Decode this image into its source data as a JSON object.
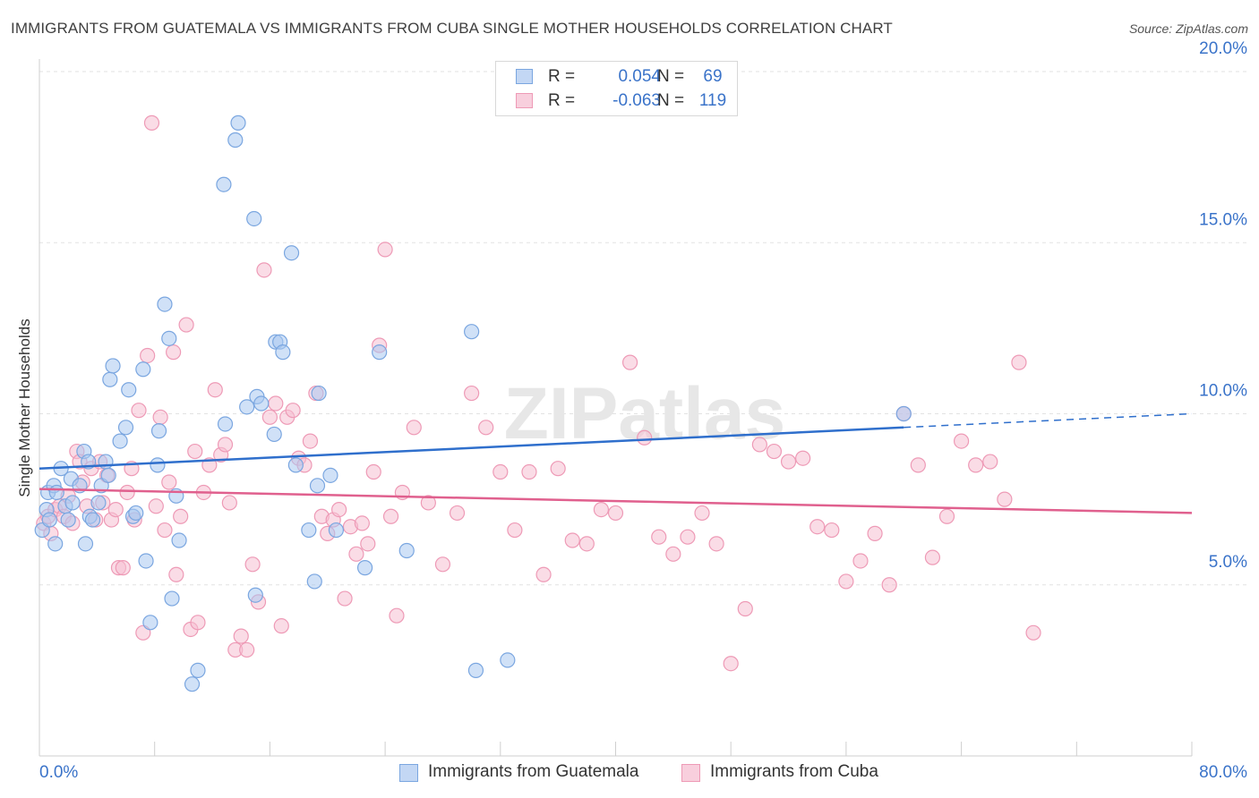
{
  "chart_data": {
    "type": "scatter",
    "title": "IMMIGRANTS FROM GUATEMALA VS IMMIGRANTS FROM CUBA SINGLE MOTHER HOUSEHOLDS CORRELATION CHART",
    "source": "Source: ZipAtlas.com",
    "ylabel": "Single Mother Households",
    "xlabel": "",
    "x_tick_labels": [
      "0.0%",
      "80.0%"
    ],
    "y_tick_labels": [
      "20.0%",
      "15.0%",
      "10.0%",
      "5.0%"
    ],
    "y_ticks": [
      20,
      15,
      10,
      5
    ],
    "xlim": [
      0,
      80
    ],
    "ylim": [
      0,
      20
    ],
    "grid": true,
    "watermark": "ZIPatlas",
    "legend": {
      "r_label": "R =",
      "n_label": "N =",
      "entries": [
        {
          "r": "0.054",
          "n": "69"
        },
        {
          "r": "-0.063",
          "n": "119"
        }
      ]
    },
    "series": [
      {
        "name": "Immigrants from Guatemala",
        "color": "#7aa6e0",
        "fill": "#aac8f0",
        "line_color": "#2f6fcc",
        "trend": {
          "x0": 0,
          "y0": 8.4,
          "x1": 60,
          "y1": 9.6,
          "dash_x1": 80,
          "dash_y1": 10.0
        },
        "points": [
          [
            0.2,
            6.6
          ],
          [
            0.5,
            7.2
          ],
          [
            0.7,
            6.9
          ],
          [
            0.6,
            7.7
          ],
          [
            1.0,
            7.9
          ],
          [
            1.2,
            7.7
          ],
          [
            1.5,
            8.4
          ],
          [
            2.2,
            8.1
          ],
          [
            1.8,
            7.3
          ],
          [
            2.0,
            6.9
          ],
          [
            2.3,
            7.4
          ],
          [
            2.8,
            7.9
          ],
          [
            3.1,
            8.9
          ],
          [
            3.4,
            8.6
          ],
          [
            3.5,
            7.0
          ],
          [
            3.2,
            6.2
          ],
          [
            3.7,
            6.9
          ],
          [
            4.1,
            7.4
          ],
          [
            4.3,
            7.9
          ],
          [
            4.6,
            8.6
          ],
          [
            4.8,
            8.2
          ],
          [
            4.9,
            11.0
          ],
          [
            5.1,
            11.4
          ],
          [
            5.6,
            9.2
          ],
          [
            6.0,
            9.6
          ],
          [
            6.2,
            10.7
          ],
          [
            6.5,
            7.0
          ],
          [
            6.7,
            7.1
          ],
          [
            7.2,
            11.3
          ],
          [
            7.4,
            5.7
          ],
          [
            7.7,
            3.9
          ],
          [
            8.2,
            8.5
          ],
          [
            8.3,
            9.5
          ],
          [
            8.7,
            13.2
          ],
          [
            9.0,
            12.2
          ],
          [
            9.2,
            4.6
          ],
          [
            9.7,
            6.3
          ],
          [
            9.5,
            7.6
          ],
          [
            10.6,
            2.1
          ],
          [
            11.0,
            2.5
          ],
          [
            12.8,
            16.7
          ],
          [
            12.9,
            9.7
          ],
          [
            13.6,
            18.0
          ],
          [
            13.8,
            18.5
          ],
          [
            14.4,
            10.2
          ],
          [
            14.9,
            15.7
          ],
          [
            15.0,
            4.7
          ],
          [
            15.1,
            10.5
          ],
          [
            15.4,
            10.3
          ],
          [
            16.3,
            9.4
          ],
          [
            16.4,
            12.1
          ],
          [
            16.7,
            12.1
          ],
          [
            16.9,
            11.8
          ],
          [
            17.5,
            14.7
          ],
          [
            17.8,
            8.5
          ],
          [
            18.7,
            6.6
          ],
          [
            19.4,
            10.6
          ],
          [
            19.1,
            5.1
          ],
          [
            19.3,
            7.9
          ],
          [
            20.2,
            8.2
          ],
          [
            20.6,
            6.6
          ],
          [
            22.6,
            5.5
          ],
          [
            23.6,
            11.8
          ],
          [
            25.5,
            6.0
          ],
          [
            30.0,
            12.4
          ],
          [
            30.3,
            2.5
          ],
          [
            32.5,
            2.8
          ],
          [
            60.0,
            10.0
          ],
          [
            1.1,
            6.2
          ]
        ]
      },
      {
        "name": "Immigrants from Cuba",
        "color": "#ee9ab6",
        "fill": "#f6bfd2",
        "line_color": "#e0608e",
        "trend": {
          "x0": 0,
          "y0": 7.8,
          "x1": 80,
          "y1": 7.1
        },
        "points": [
          [
            0.3,
            6.8
          ],
          [
            0.6,
            7.0
          ],
          [
            0.8,
            6.5
          ],
          [
            1.1,
            7.2
          ],
          [
            1.4,
            7.3
          ],
          [
            1.7,
            7.0
          ],
          [
            2.0,
            7.6
          ],
          [
            2.3,
            6.8
          ],
          [
            2.6,
            8.9
          ],
          [
            2.8,
            8.6
          ],
          [
            3.0,
            8.0
          ],
          [
            3.3,
            7.3
          ],
          [
            3.6,
            8.4
          ],
          [
            3.9,
            6.9
          ],
          [
            4.2,
            8.6
          ],
          [
            4.4,
            7.4
          ],
          [
            4.7,
            8.2
          ],
          [
            5.0,
            6.9
          ],
          [
            5.3,
            7.2
          ],
          [
            5.5,
            5.5
          ],
          [
            5.8,
            5.5
          ],
          [
            6.1,
            7.7
          ],
          [
            6.4,
            8.4
          ],
          [
            6.6,
            6.9
          ],
          [
            6.9,
            10.1
          ],
          [
            7.2,
            3.6
          ],
          [
            7.5,
            11.7
          ],
          [
            7.8,
            18.5
          ],
          [
            8.1,
            7.3
          ],
          [
            8.4,
            9.9
          ],
          [
            8.7,
            6.6
          ],
          [
            9.0,
            8.0
          ],
          [
            9.3,
            11.8
          ],
          [
            9.5,
            5.3
          ],
          [
            9.8,
            7.0
          ],
          [
            10.2,
            12.6
          ],
          [
            10.5,
            3.7
          ],
          [
            10.8,
            8.9
          ],
          [
            11.0,
            3.9
          ],
          [
            11.4,
            7.7
          ],
          [
            11.8,
            8.5
          ],
          [
            12.2,
            10.7
          ],
          [
            12.6,
            8.8
          ],
          [
            12.9,
            9.1
          ],
          [
            13.2,
            7.4
          ],
          [
            13.6,
            3.1
          ],
          [
            14.0,
            3.5
          ],
          [
            14.4,
            3.1
          ],
          [
            14.8,
            5.6
          ],
          [
            15.2,
            4.5
          ],
          [
            15.6,
            14.2
          ],
          [
            16.0,
            9.9
          ],
          [
            16.4,
            10.3
          ],
          [
            16.8,
            3.8
          ],
          [
            17.2,
            9.9
          ],
          [
            17.6,
            10.1
          ],
          [
            18.0,
            8.7
          ],
          [
            18.4,
            8.5
          ],
          [
            18.8,
            9.2
          ],
          [
            19.2,
            10.6
          ],
          [
            19.6,
            7.0
          ],
          [
            20.0,
            6.5
          ],
          [
            20.4,
            6.9
          ],
          [
            20.8,
            7.2
          ],
          [
            21.2,
            4.6
          ],
          [
            21.6,
            6.7
          ],
          [
            22.0,
            5.9
          ],
          [
            22.4,
            6.8
          ],
          [
            22.8,
            6.2
          ],
          [
            23.2,
            8.3
          ],
          [
            23.6,
            12.0
          ],
          [
            24.0,
            14.8
          ],
          [
            24.4,
            7.0
          ],
          [
            24.8,
            4.1
          ],
          [
            25.2,
            7.7
          ],
          [
            26.0,
            9.6
          ],
          [
            27.0,
            7.4
          ],
          [
            28.0,
            5.6
          ],
          [
            29.0,
            7.1
          ],
          [
            30.0,
            10.6
          ],
          [
            31.0,
            9.6
          ],
          [
            32.0,
            8.3
          ],
          [
            33.0,
            6.6
          ],
          [
            34.0,
            8.3
          ],
          [
            35.0,
            5.3
          ],
          [
            36.0,
            8.4
          ],
          [
            37.0,
            6.3
          ],
          [
            38.0,
            6.2
          ],
          [
            39.0,
            7.2
          ],
          [
            40.0,
            7.1
          ],
          [
            41.0,
            11.5
          ],
          [
            42.0,
            9.3
          ],
          [
            43.0,
            6.4
          ],
          [
            44.0,
            5.9
          ],
          [
            45.0,
            6.4
          ],
          [
            46.0,
            7.1
          ],
          [
            47.0,
            6.2
          ],
          [
            48.0,
            2.7
          ],
          [
            49.0,
            4.3
          ],
          [
            50.0,
            9.1
          ],
          [
            51.0,
            8.9
          ],
          [
            52.0,
            8.6
          ],
          [
            53.0,
            8.7
          ],
          [
            54.0,
            6.7
          ],
          [
            55.0,
            6.6
          ],
          [
            56.0,
            5.1
          ],
          [
            57.0,
            5.7
          ],
          [
            58.0,
            6.5
          ],
          [
            59.0,
            5.0
          ],
          [
            60.0,
            10.0
          ],
          [
            61.0,
            8.5
          ],
          [
            62.0,
            5.8
          ],
          [
            63.0,
            7.0
          ],
          [
            64.0,
            9.2
          ],
          [
            65.0,
            8.5
          ],
          [
            66.0,
            8.6
          ],
          [
            67.0,
            7.5
          ],
          [
            68.0,
            11.5
          ],
          [
            69.0,
            3.6
          ]
        ]
      }
    ]
  }
}
